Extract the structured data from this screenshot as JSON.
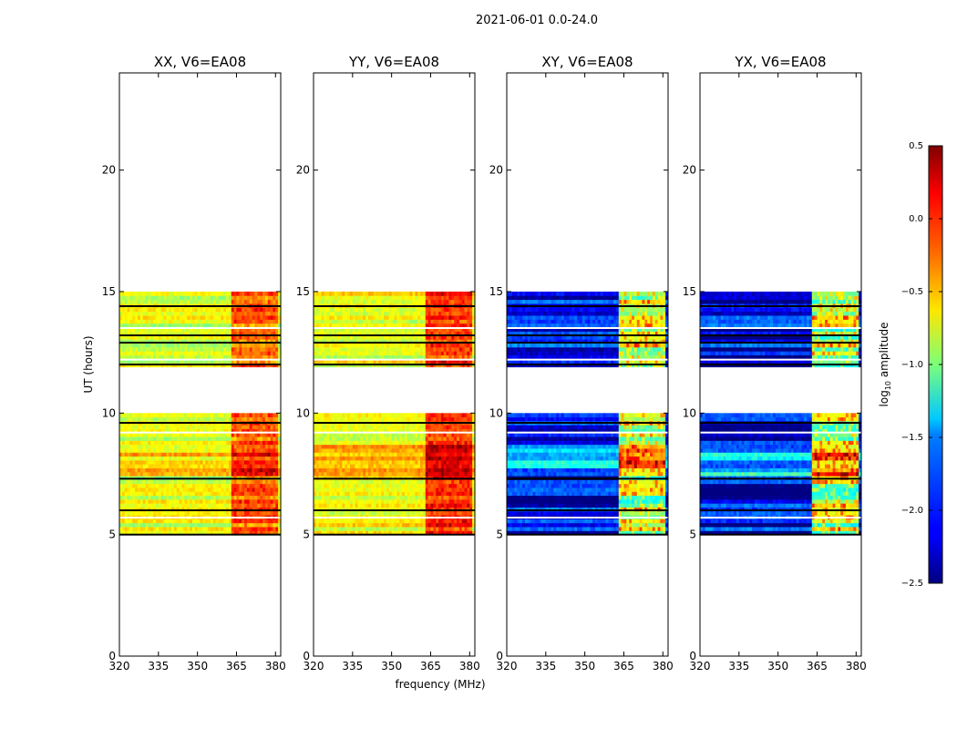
{
  "chart_data": {
    "type": "heatmap",
    "suptitle": "2021-06-01 0.0-24.0",
    "xlabel": "frequency (MHz)",
    "ylabel": "UT (hours)",
    "xlim": [
      320,
      382
    ],
    "ylim": [
      0,
      24
    ],
    "xticks": [
      320,
      335,
      350,
      365,
      380
    ],
    "xtick_labels": [
      "320",
      "335",
      "350",
      "365",
      "380"
    ],
    "yticks": [
      0,
      5,
      10,
      15,
      20
    ],
    "ytick_labels": [
      "0",
      "5",
      "10",
      "15",
      "20"
    ],
    "data_time_ranges": [
      [
        5.0,
        10.0
      ],
      [
        11.9,
        15.0
      ]
    ],
    "panels": [
      {
        "title": "XX, V6=EA08",
        "pol": "XX",
        "baseline": "V6=EA08",
        "base_level": -0.75,
        "high_freq_level": -0.25
      },
      {
        "title": "YY, V6=EA08",
        "pol": "YY",
        "baseline": "V6=EA08",
        "base_level": -0.65,
        "high_freq_level": -0.05
      },
      {
        "title": "XY, V6=EA08",
        "pol": "XY",
        "baseline": "V6=EA08",
        "base_level": -2.15,
        "high_freq_level": -0.9
      },
      {
        "title": "YX, V6=EA08",
        "pol": "YX",
        "baseline": "V6=EA08",
        "base_level": -2.15,
        "high_freq_level": -0.9
      }
    ],
    "high_freq_range": [
      363,
      380
    ],
    "colorbar": {
      "label_main": "log",
      "label_sub": "10",
      "label_rest": " amplitude",
      "vmin": -2.5,
      "vmax": 0.5,
      "ticks": [
        0.5,
        0.0,
        -0.5,
        -1.0,
        -1.5,
        -2.0,
        -2.5
      ],
      "tick_labels": [
        "0.5",
        "0.0",
        "−0.5",
        "−1.0",
        "−1.5",
        "−2.0",
        "−2.5"
      ],
      "colormap": "jet"
    }
  }
}
